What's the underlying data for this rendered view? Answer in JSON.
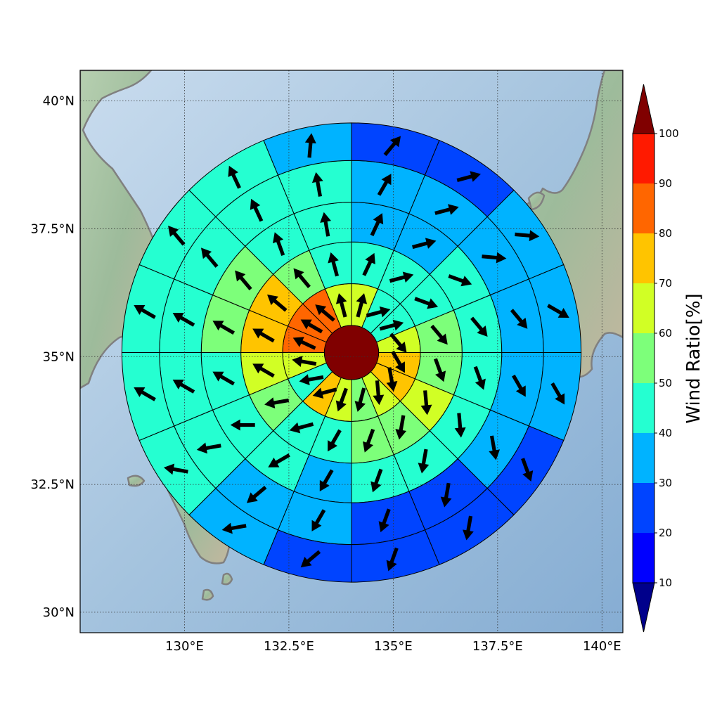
{
  "chart_data": {
    "type": "polar-sector-map",
    "title": "",
    "map": {
      "lon_range": [
        127.5,
        140.5
      ],
      "lat_range": [
        29.6,
        40.6
      ],
      "lon_ticks": [
        130,
        132.5,
        135,
        137.5,
        140
      ],
      "lat_ticks": [
        30,
        32.5,
        35,
        37.5,
        40
      ],
      "lon_tick_labels": [
        "130°E",
        "132.5°E",
        "135°E",
        "137.5°E",
        "140°E"
      ],
      "lat_tick_labels": [
        "30°N",
        "32.5°N",
        "35°N",
        "37.5°N",
        "40°N"
      ],
      "grid": true,
      "coastline_color": "#808080"
    },
    "polar_grid": {
      "center_lon": 134.0,
      "center_lat": 35.08,
      "num_sectors": 16,
      "ring_radius_deg": [
        0.65,
        1.65,
        2.65,
        3.6,
        4.6,
        5.5
      ],
      "center_value": 100
    },
    "rings": [
      {
        "values": [
          65,
          45,
          45,
          65,
          75,
          75,
          65,
          55,
          65,
          75,
          45,
          65,
          85,
          85,
          85,
          65
        ],
        "arrow_dir_deg": [
          15,
          75,
          75,
          140,
          150,
          170,
          175,
          195,
          200,
          255,
          260,
          280,
          295,
          300,
          310,
          345
        ]
      },
      {
        "values": [
          45,
          45,
          45,
          55,
          55,
          65,
          55,
          55,
          45,
          45,
          55,
          65,
          75,
          75,
          55,
          45
        ],
        "arrow_dir_deg": [
          25,
          75,
          110,
          140,
          160,
          175,
          190,
          200,
          210,
          255,
          260,
          300,
          300,
          310,
          320,
          345
        ]
      },
      {
        "values": [
          35,
          35,
          45,
          45,
          45,
          45,
          45,
          45,
          35,
          45,
          45,
          45,
          55,
          55,
          45,
          45
        ],
        "arrow_dir_deg": [
          25,
          75,
          110,
          140,
          160,
          175,
          190,
          200,
          210,
          240,
          270,
          300,
          300,
          320,
          340,
          350
        ]
      },
      {
        "values": [
          35,
          35,
          35,
          35,
          35,
          35,
          25,
          25,
          35,
          35,
          45,
          45,
          45,
          45,
          45,
          45
        ],
        "arrow_dir_deg": [
          30,
          75,
          95,
          140,
          150,
          170,
          190,
          200,
          210,
          230,
          260,
          300,
          300,
          320,
          335,
          350
        ]
      },
      {
        "values": [
          25,
          25,
          35,
          35,
          35,
          25,
          25,
          25,
          25,
          35,
          45,
          45,
          45,
          45,
          45,
          35
        ],
        "arrow_dir_deg": [
          40,
          75,
          95,
          120,
          150,
          160,
          190,
          200,
          230,
          260,
          280,
          300,
          300,
          320,
          335,
          5
        ]
      }
    ],
    "colorbar": {
      "label": "Wind Ratio[%]",
      "levels": [
        10,
        20,
        30,
        40,
        50,
        60,
        70,
        80,
        90,
        100
      ],
      "tick_labels": [
        "10",
        "20",
        "30",
        "40",
        "50",
        "60",
        "70",
        "80",
        "90",
        "100"
      ],
      "colors": [
        "#0000ff",
        "#0044ff",
        "#00b3ff",
        "#25ffd1",
        "#7dff7a",
        "#d1ff25",
        "#ffc400",
        "#ff6600",
        "#ff1a00"
      ],
      "under_color": "#00008b",
      "over_color": "#800000",
      "extend": "both"
    }
  }
}
